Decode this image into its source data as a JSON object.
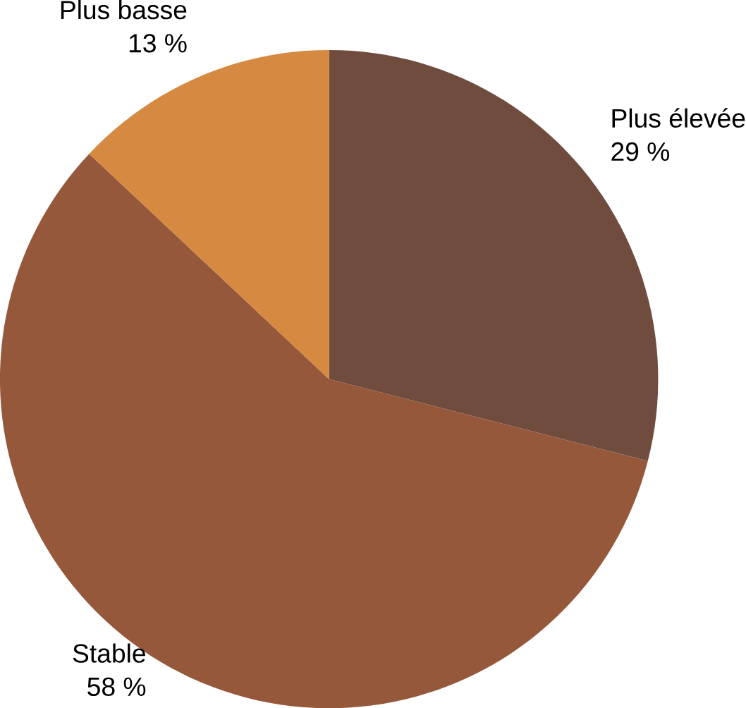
{
  "chart_data": {
    "type": "pie",
    "categories": [
      "Plus élevée",
      "Stable",
      "Plus basse"
    ],
    "values": [
      29,
      58,
      13
    ],
    "value_labels": [
      "29 %",
      "58 %",
      "13 %"
    ],
    "colors": [
      "#704c3e",
      "#96583b",
      "#d68940"
    ]
  }
}
